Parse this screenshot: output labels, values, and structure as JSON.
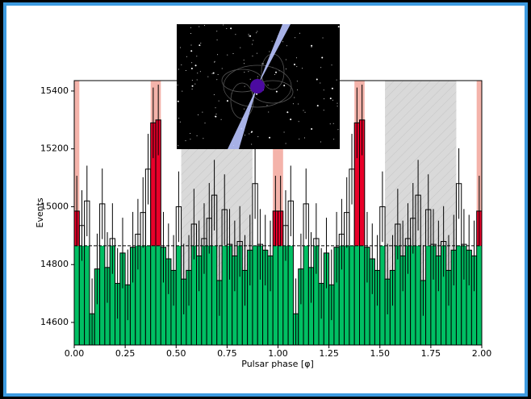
{
  "chart_data": {
    "type": "histogram",
    "xlabel": "Pulsar phase [φ]",
    "ylabel": "Events",
    "bins": [
      0,
      0.025,
      0.05,
      0.075,
      0.1,
      0.125,
      0.15,
      0.175,
      0.2,
      0.225,
      0.25,
      0.275,
      0.3,
      0.325,
      0.35,
      0.375,
      0.4,
      0.425,
      0.45,
      0.475,
      0.5,
      0.525,
      0.55,
      0.575,
      0.6,
      0.625,
      0.65,
      0.675,
      0.7,
      0.725,
      0.75,
      0.775,
      0.8,
      0.825,
      0.85,
      0.875,
      0.9,
      0.925,
      0.95,
      0.975,
      1,
      1.025,
      1.05,
      1.075,
      1.1,
      1.125,
      1.15,
      1.175,
      1.2,
      1.225,
      1.25,
      1.275,
      1.3,
      1.325,
      1.35,
      1.375,
      1.4,
      1.425,
      1.45,
      1.475,
      1.5,
      1.525,
      1.55,
      1.575,
      1.6,
      1.625,
      1.65,
      1.675,
      1.7,
      1.725,
      1.75,
      1.775,
      1.8,
      1.825,
      1.85,
      1.875,
      1.9,
      1.925,
      1.95,
      1.975,
      2
    ],
    "values": [
      14985,
      14935,
      15020,
      14630,
      14785,
      15010,
      14790,
      14890,
      14735,
      14840,
      14730,
      14860,
      14905,
      14980,
      15130,
      15290,
      15300,
      14860,
      14820,
      14780,
      15000,
      14750,
      14780,
      14940,
      14830,
      14890,
      14960,
      15040,
      14745,
      14990,
      14870,
      14830,
      14880,
      14780,
      14850,
      15080,
      14870,
      14850,
      14830,
      14985,
      14985,
      14935,
      15020,
      14630,
      14785,
      15010,
      14790,
      14890,
      14735,
      14840,
      14730,
      14860,
      14905,
      14980,
      15130,
      15290,
      15300,
      14860,
      14820,
      14780,
      15000,
      14750,
      14780,
      14940,
      14830,
      14890,
      14960,
      15040,
      14745,
      14990,
      14870,
      14830,
      14880,
      14780,
      14850,
      15080,
      14870,
      14850,
      14830,
      14985
    ],
    "error": 122,
    "mean": 14865,
    "color": "#00bf63",
    "on_pulse_color": "#e8002a",
    "on_pulse_shade": "#f4b3aa",
    "off_pulse_shade": "#d9d9d9",
    "on_pulse": [
      [
        -0.025,
        0.025
      ],
      [
        0.375,
        0.425
      ],
      [
        0.975,
        1.025
      ],
      [
        1.375,
        1.425
      ],
      [
        1.975,
        2.025
      ]
    ],
    "off_pulse": [
      [
        0.525,
        0.875
      ],
      [
        1.525,
        1.875
      ]
    ],
    "xlim": [
      0,
      2
    ],
    "ylim": [
      14522,
      15436
    ],
    "xticks": [
      {
        "value": 0,
        "label": "0.00"
      },
      {
        "value": 0.25,
        "label": "0.25"
      },
      {
        "value": 0.5,
        "label": "0.50"
      },
      {
        "value": 0.75,
        "label": "0.75"
      },
      {
        "value": 1,
        "label": "1.00"
      },
      {
        "value": 1.25,
        "label": "1.25"
      },
      {
        "value": 1.5,
        "label": "1.50"
      },
      {
        "value": 1.75,
        "label": "1.75"
      },
      {
        "value": 2,
        "label": "2.00"
      }
    ],
    "yticks": [
      14600,
      14800,
      15000,
      15200,
      15400
    ]
  }
}
